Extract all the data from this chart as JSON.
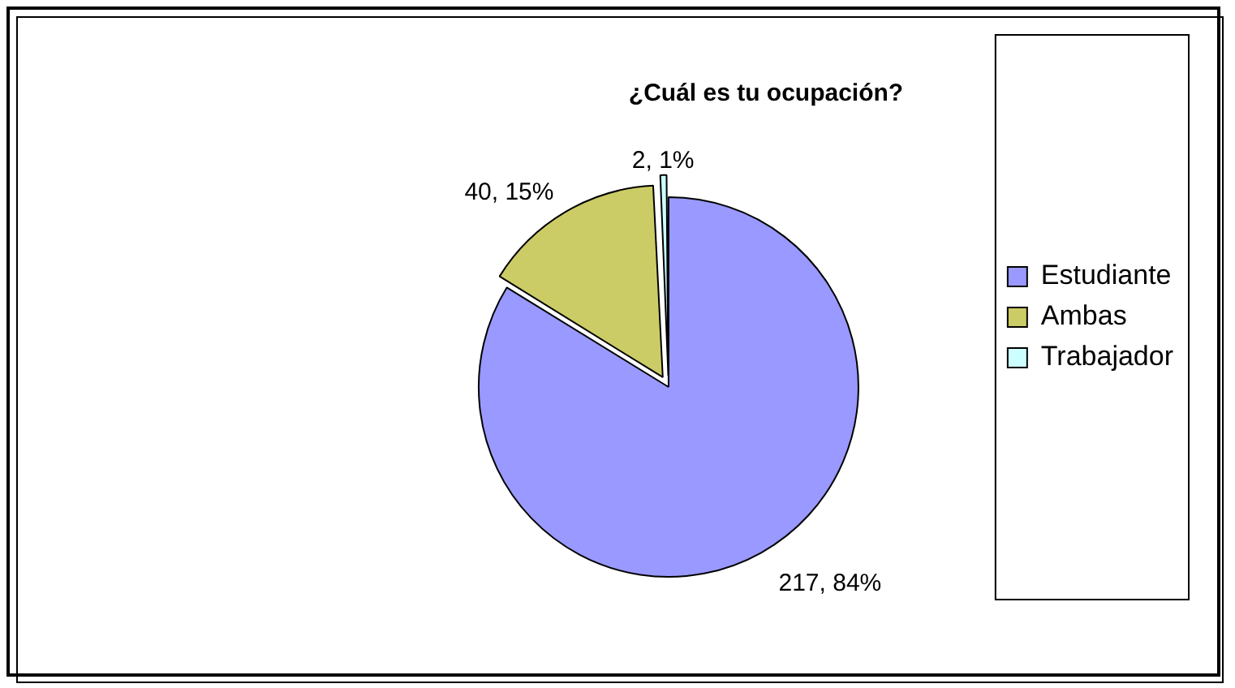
{
  "chart_data": {
    "type": "pie",
    "title": "¿Cuál es tu ocupación?",
    "categories": [
      "Estudiante",
      "Ambas",
      "Trabajador"
    ],
    "values": [
      217,
      40,
      2
    ],
    "colors": [
      "#9999ff",
      "#cccc66",
      "#ccffff"
    ],
    "value_labels": [
      "217, 84%",
      "40, 15%",
      "2, 1%"
    ],
    "legend": "right"
  }
}
